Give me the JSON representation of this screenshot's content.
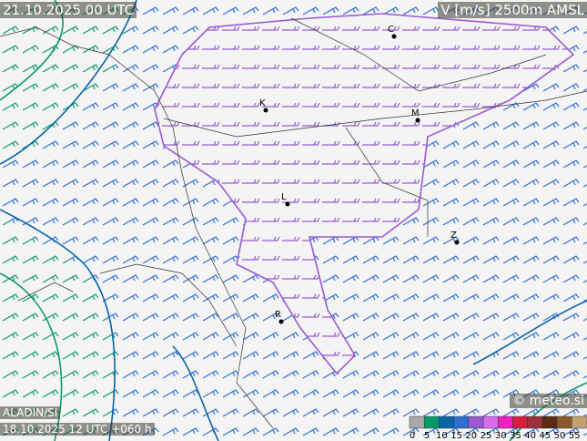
{
  "header": {
    "valid_time": "21.10.2025 00 UTC",
    "field": "V [m/s] 2500m AMSL"
  },
  "footer": {
    "model": "ALADIN/SI",
    "run": "18.10.2025 12 UTC +060 h",
    "credit": "© meteo.si"
  },
  "cities": [
    {
      "label": "C"
    },
    {
      "label": "K"
    },
    {
      "label": "M"
    },
    {
      "label": "L"
    },
    {
      "label": "Z"
    },
    {
      "label": "R"
    }
  ],
  "legend": {
    "values": [
      0,
      5,
      10,
      15,
      20,
      25,
      30,
      35,
      40,
      45,
      50,
      55
    ],
    "colors": [
      "#a8a8a8",
      "#009a66",
      "#0a64a8",
      "#2c6ed2",
      "#9a5ad2",
      "#d86cf0",
      "#f020c0",
      "#d81e3c",
      "#a0303a",
      "#5a2a14",
      "#8a5a2a",
      "#c8a070"
    ]
  }
}
